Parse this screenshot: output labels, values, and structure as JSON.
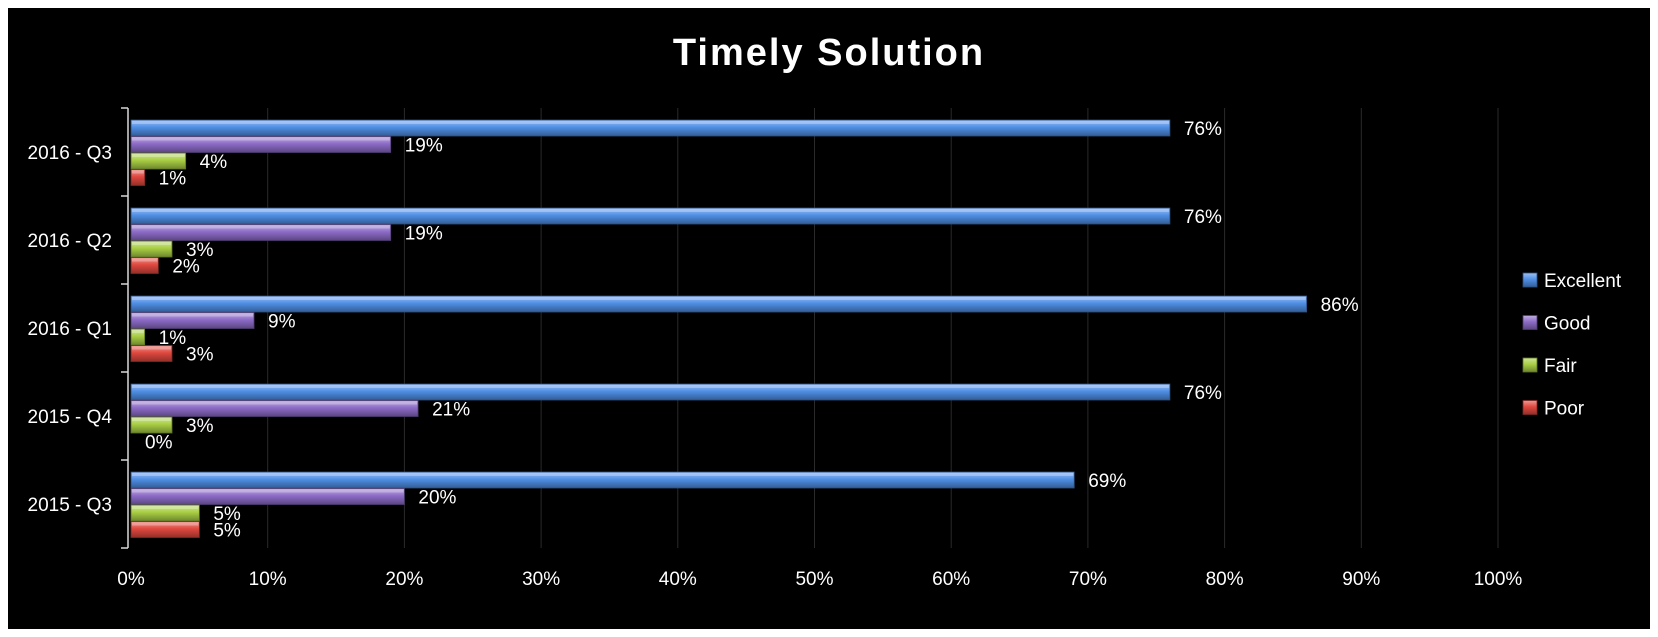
{
  "chart_data": {
    "type": "bar",
    "orientation": "horizontal",
    "title": "Timely Solution",
    "categories": [
      "2016 - Q3",
      "2016 - Q2",
      "2016 - Q1",
      "2015 - Q4",
      "2015 - Q3"
    ],
    "series": [
      {
        "name": "Excellent",
        "color": "#4f8fe6",
        "values": [
          76,
          76,
          86,
          76,
          69
        ],
        "labels": [
          "76%",
          "76%",
          "86%",
          "76%",
          "69%"
        ]
      },
      {
        "name": "Good",
        "color": "#8d6cc8",
        "values": [
          19,
          19,
          9,
          21,
          20
        ],
        "labels": [
          "19%",
          "19%",
          "9%",
          "21%",
          "20%"
        ]
      },
      {
        "name": "Fair",
        "color": "#a9cf45",
        "values": [
          4,
          3,
          1,
          3,
          5
        ],
        "labels": [
          "4%",
          "3%",
          "1%",
          "3%",
          "5%"
        ]
      },
      {
        "name": "Poor",
        "color": "#e0483f",
        "values": [
          1,
          2,
          3,
          0,
          5
        ],
        "labels": [
          "1%",
          "2%",
          "3%",
          "0%",
          "5%"
        ]
      }
    ],
    "xlim": [
      0,
      100
    ],
    "x_ticks": [
      "0%",
      "10%",
      "20%",
      "30%",
      "40%",
      "50%",
      "60%",
      "70%",
      "80%",
      "90%",
      "100%"
    ],
    "grid": true,
    "legend_position": "right",
    "background": "#000000",
    "text_color": "#ffffff"
  }
}
